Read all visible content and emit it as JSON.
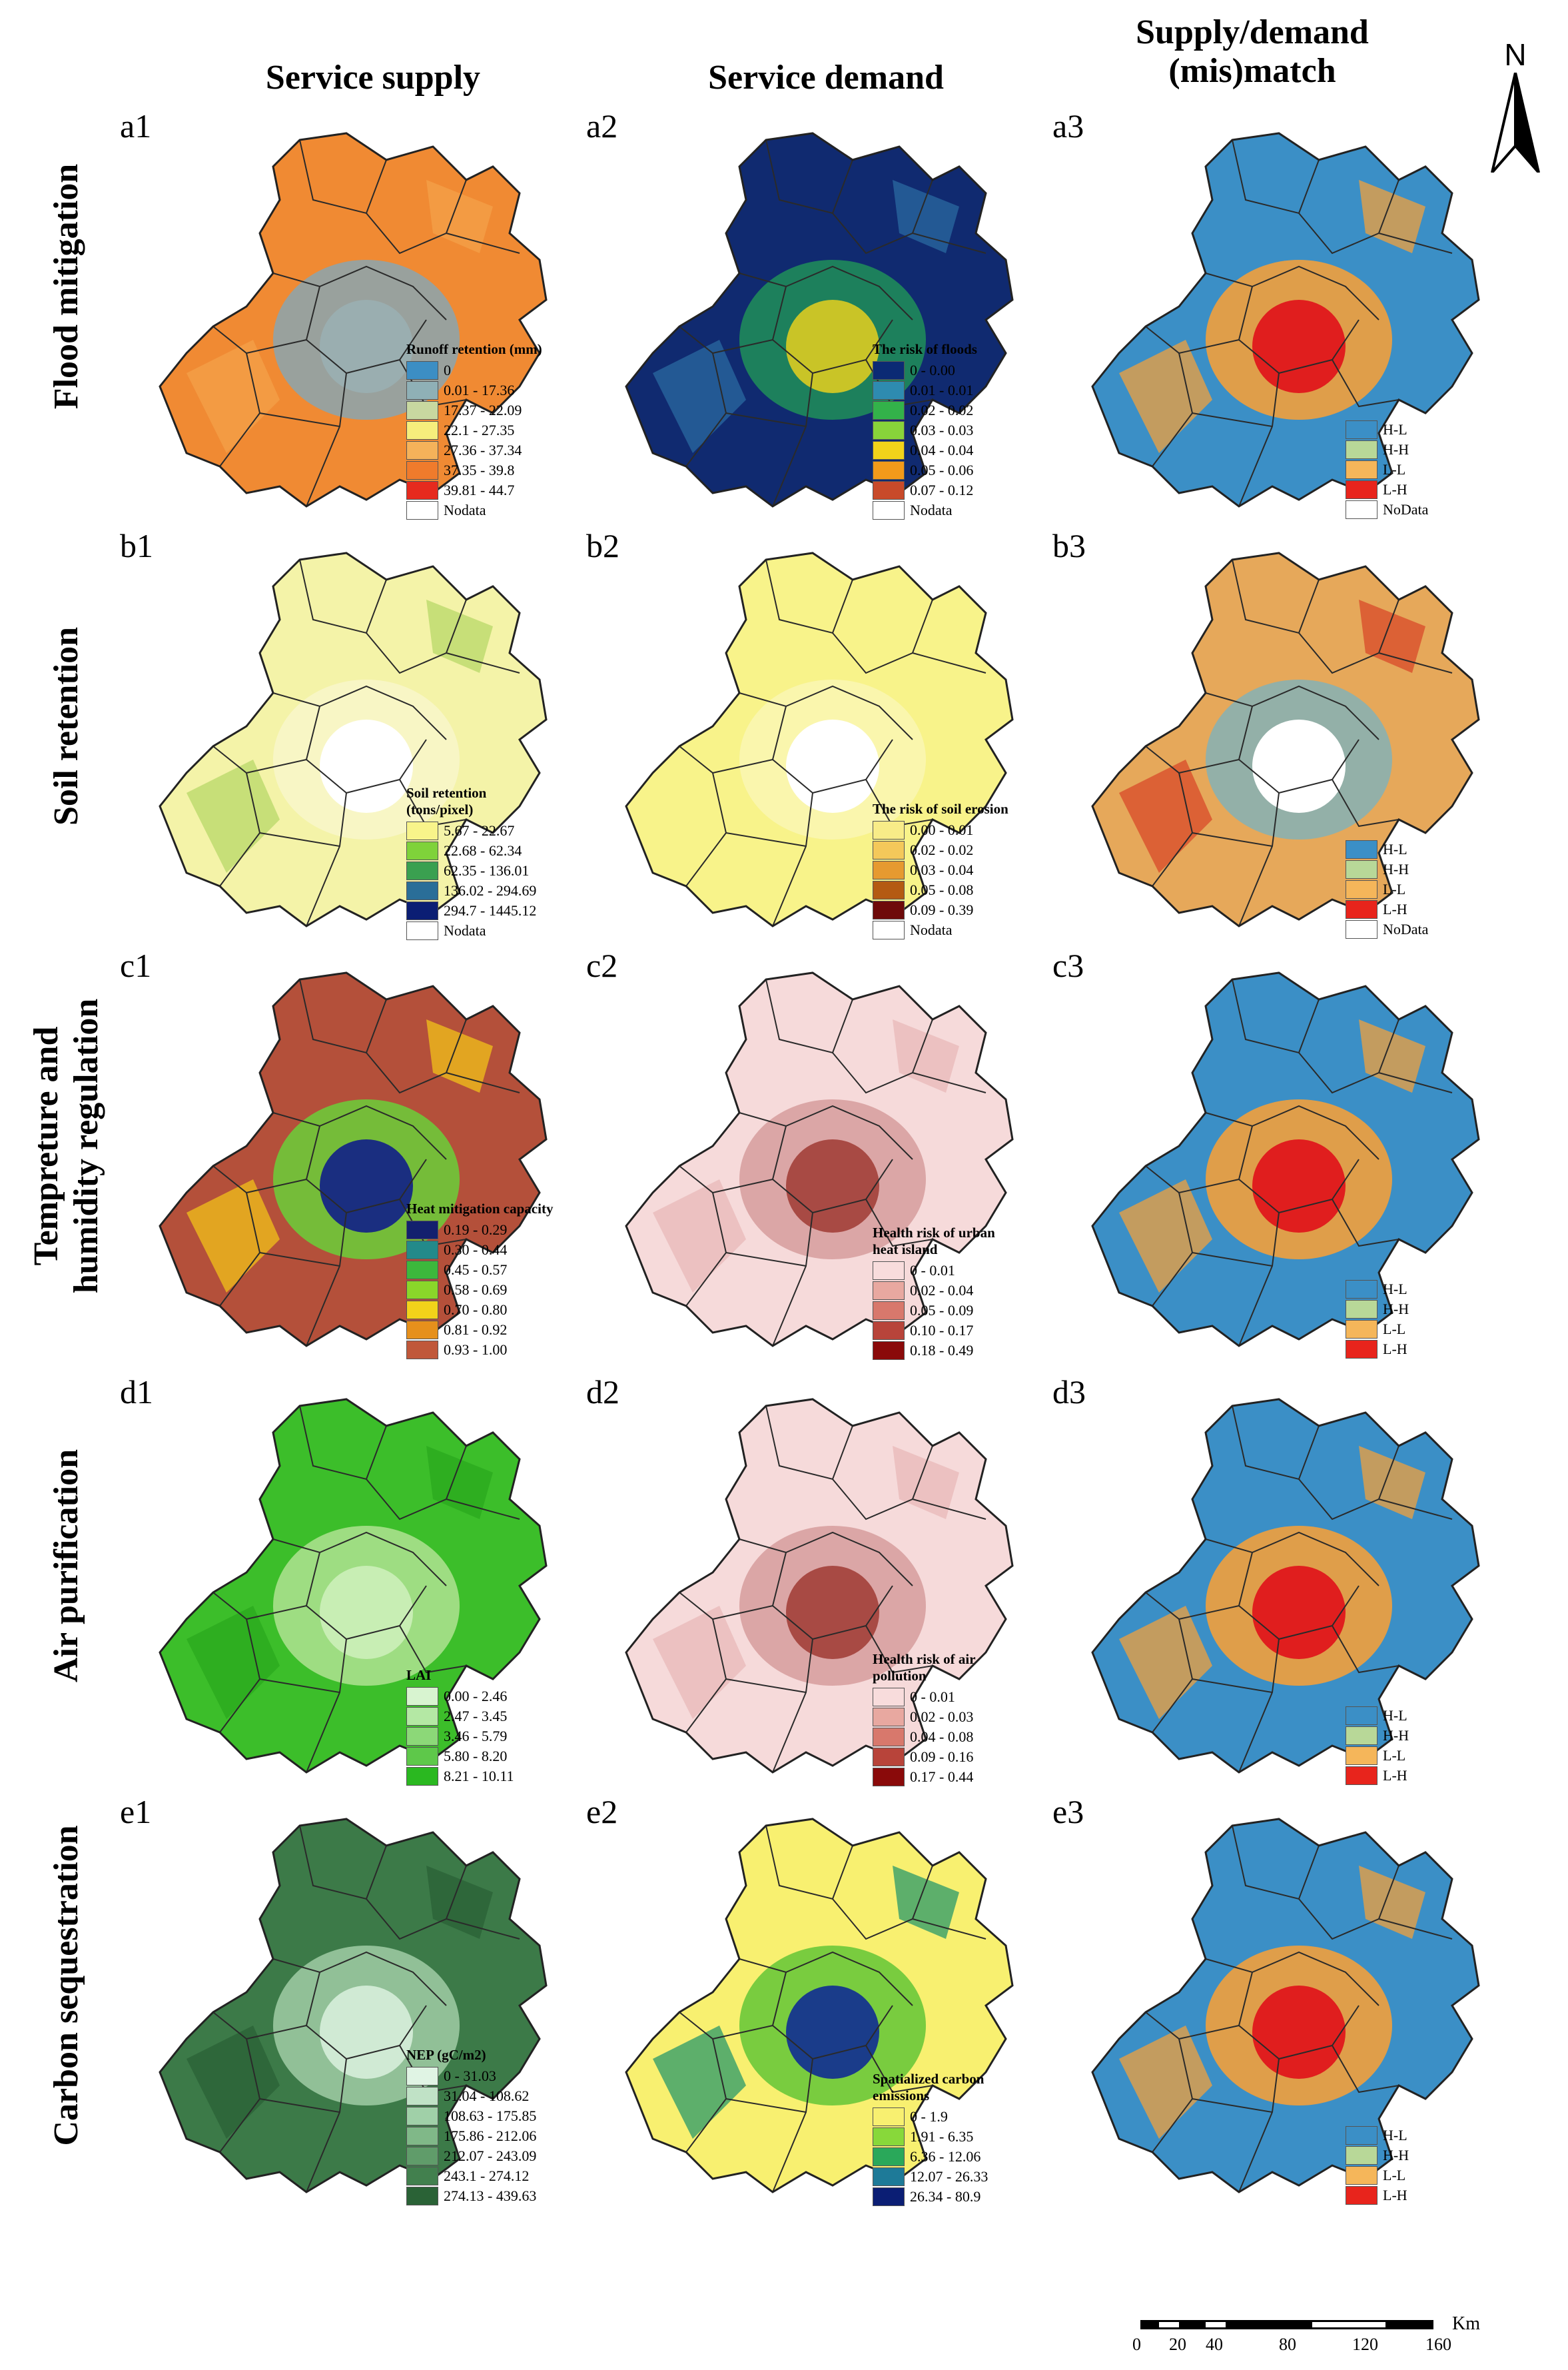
{
  "column_headers": {
    "supply": "Service supply",
    "demand": "Service demand",
    "match_line1": "Supply/demand",
    "match_line2": "(mis)match"
  },
  "north_arrow": {
    "label": "N"
  },
  "scale_bar": {
    "unit": "Km",
    "ticks": [
      "0",
      "20",
      "40",
      "80",
      "120",
      "160"
    ]
  },
  "rows": [
    {
      "title_lines": [
        "Flood mitigation"
      ],
      "panels": [
        {
          "label": "a1",
          "map_colors": {
            "base": "#f08a33",
            "mid": "#8fa3a8",
            "core": "#9aaeb0",
            "extra": "#f4a04a"
          },
          "legend": {
            "title": "Runoff retention (mm)",
            "items": [
              {
                "label": "0",
                "color": "#3c8ec4"
              },
              {
                "label": "0.01 - 17.36",
                "color": "#8fb0b6"
              },
              {
                "label": "17.37 - 22.09",
                "color": "#c8d8a0"
              },
              {
                "label": "22.1 - 27.35",
                "color": "#f6ee7c"
              },
              {
                "label": "27.36 - 37.34",
                "color": "#f5b25a"
              },
              {
                "label": "37.35 - 39.8",
                "color": "#f07b2c"
              },
              {
                "label": "39.81 - 44.7",
                "color": "#e62a1e"
              },
              {
                "label": "Nodata",
                "color": "#ffffff"
              }
            ]
          }
        },
        {
          "label": "a2",
          "map_colors": {
            "base": "#102a70",
            "mid": "#1f8a5a",
            "core": "#c9c427",
            "extra": "#2a6aa0"
          },
          "legend": {
            "title": "The risk of floods",
            "items": [
              {
                "label": "0 - 0.00",
                "color": "#0b2a74"
              },
              {
                "label": "0.01 - 0.01",
                "color": "#2e8bb0"
              },
              {
                "label": "0.02 - 0.02",
                "color": "#33b24a"
              },
              {
                "label": "0.03 - 0.03",
                "color": "#88d33a"
              },
              {
                "label": "0.04 - 0.04",
                "color": "#f2d31a"
              },
              {
                "label": "0.05 - 0.06",
                "color": "#f29a1a"
              },
              {
                "label": "0.07 - 0.12",
                "color": "#c84a2a"
              },
              {
                "label": "Nodata",
                "color": "#ffffff"
              }
            ]
          }
        },
        {
          "label": "a3",
          "map_colors": {
            "base": "#3b8fc6",
            "mid": "#f2a03c",
            "core": "#e01e1e",
            "extra": "#f2a03c"
          },
          "legend": {
            "title": "",
            "items": [
              {
                "label": "H-L",
                "color": "#3b8fc6"
              },
              {
                "label": "H-H",
                "color": "#b8d898"
              },
              {
                "label": "L-L",
                "color": "#f5b65a"
              },
              {
                "label": "L-H",
                "color": "#e8241c"
              },
              {
                "label": "NoData",
                "color": "#ffffff"
              }
            ]
          }
        }
      ]
    },
    {
      "title_lines": [
        "Soil retention"
      ],
      "panels": [
        {
          "label": "b1",
          "map_colors": {
            "base": "#f4f3a8",
            "mid": "#f8f6c8",
            "core": "#ffffff",
            "extra": "#b8d868"
          },
          "legend": {
            "title": "Soil retention (tons/pixel)",
            "items": [
              {
                "label": "5.67 - 22.67",
                "color": "#f8f48a"
              },
              {
                "label": "22.68 - 62.34",
                "color": "#7fd23a"
              },
              {
                "label": "62.35 - 136.01",
                "color": "#3aa050"
              },
              {
                "label": "136.02 - 294.69",
                "color": "#2a6e98"
              },
              {
                "label": "294.7 - 1445.12",
                "color": "#0b1e74"
              },
              {
                "label": "Nodata",
                "color": "#ffffff"
              }
            ]
          }
        },
        {
          "label": "b2",
          "map_colors": {
            "base": "#f8f38a",
            "mid": "#faf6b0",
            "core": "#ffffff",
            "extra": "#f8f38a"
          },
          "legend": {
            "title": "The risk of soil erosion",
            "items": [
              {
                "label": "0.00 - 0.01",
                "color": "#f8ec88"
              },
              {
                "label": "0.02 - 0.02",
                "color": "#f4c85a"
              },
              {
                "label": "0.03 - 0.04",
                "color": "#e69a30"
              },
              {
                "label": "0.05 - 0.08",
                "color": "#b45a12"
              },
              {
                "label": "0.09 - 0.39",
                "color": "#6e0a0a"
              },
              {
                "label": "Nodata",
                "color": "#ffffff"
              }
            ]
          }
        },
        {
          "label": "b3",
          "map_colors": {
            "base": "#e6a85a",
            "mid": "#8ab0b0",
            "core": "#ffffff",
            "extra": "#d84a2a"
          },
          "legend": {
            "title": "",
            "items": [
              {
                "label": "H-L",
                "color": "#3b8fc6"
              },
              {
                "label": "H-H",
                "color": "#b8d898"
              },
              {
                "label": "L-L",
                "color": "#f5b65a"
              },
              {
                "label": "L-H",
                "color": "#e8241c"
              },
              {
                "label": "NoData",
                "color": "#ffffff"
              }
            ]
          }
        }
      ]
    },
    {
      "title_lines": [
        "Tempreture and",
        "humidity regulation"
      ],
      "panels": [
        {
          "label": "c1",
          "map_colors": {
            "base": "#b4503a",
            "mid": "#6ec83a",
            "core": "#1a2e80",
            "extra": "#f2c21a"
          },
          "legend": {
            "title": "Heat mitigation capacity",
            "items": [
              {
                "label": "0.19 - 0.29",
                "color": "#13206e"
              },
              {
                "label": "0.30 - 0.44",
                "color": "#238a8a"
              },
              {
                "label": "0.45 - 0.57",
                "color": "#3cb83c"
              },
              {
                "label": "0.58 - 0.69",
                "color": "#8ad62a"
              },
              {
                "label": "0.70 - 0.80",
                "color": "#f2d21a"
              },
              {
                "label": "0.81 - 0.92",
                "color": "#e6901c"
              },
              {
                "label": "0.93 - 1.00",
                "color": "#c0583a"
              }
            ]
          }
        },
        {
          "label": "c2",
          "map_colors": {
            "base": "#f6dada",
            "mid": "#d8a0a0",
            "core": "#a84a44",
            "extra": "#e8b8b8"
          },
          "legend": {
            "title": "Health risk of urban heat island",
            "items": [
              {
                "label": "0 - 0.01",
                "color": "#f8dcdc"
              },
              {
                "label": "0.02 - 0.04",
                "color": "#e8a8a0"
              },
              {
                "label": "0.05 - 0.09",
                "color": "#d8786c"
              },
              {
                "label": "0.10 - 0.17",
                "color": "#b8443a"
              },
              {
                "label": "0.18 - 0.49",
                "color": "#8a0a0a"
              }
            ]
          }
        },
        {
          "label": "c3",
          "map_colors": {
            "base": "#3b8fc6",
            "mid": "#f2a03c",
            "core": "#e01e1e",
            "extra": "#f2a03c"
          },
          "legend": {
            "title": "",
            "items": [
              {
                "label": "H-L",
                "color": "#3b8fc6"
              },
              {
                "label": "H-H",
                "color": "#b8d898"
              },
              {
                "label": "L-L",
                "color": "#f5b65a"
              },
              {
                "label": "L-H",
                "color": "#e8241c"
              }
            ]
          }
        }
      ]
    },
    {
      "title_lines": [
        "Air purification"
      ],
      "panels": [
        {
          "label": "d1",
          "map_colors": {
            "base": "#3cbe2a",
            "mid": "#a8e08c",
            "core": "#c8eeb4",
            "extra": "#2aa81e"
          },
          "legend": {
            "title": "LAI",
            "items": [
              {
                "label": "0.00 - 2.46",
                "color": "#d8f4d0"
              },
              {
                "label": "2.47 - 3.45",
                "color": "#b4e8a4"
              },
              {
                "label": "3.46 - 5.79",
                "color": "#8cd878"
              },
              {
                "label": "5.80 - 8.20",
                "color": "#5ec84a"
              },
              {
                "label": "8.21 - 10.11",
                "color": "#2ab820"
              }
            ]
          }
        },
        {
          "label": "d2",
          "map_colors": {
            "base": "#f6dada",
            "mid": "#d8a0a0",
            "core": "#a84a44",
            "extra": "#e8b8b8"
          },
          "legend": {
            "title": "Health risk of air pollution",
            "items": [
              {
                "label": "0 - 0.01",
                "color": "#f8dcdc"
              },
              {
                "label": "0.02 - 0.03",
                "color": "#e8a8a0"
              },
              {
                "label": "0.04 - 0.08",
                "color": "#d8786c"
              },
              {
                "label": "0.09 - 0.16",
                "color": "#b8443a"
              },
              {
                "label": "0.17 - 0.44",
                "color": "#8a0a0a"
              }
            ]
          }
        },
        {
          "label": "d3",
          "map_colors": {
            "base": "#3b8fc6",
            "mid": "#f2a03c",
            "core": "#e01e1e",
            "extra": "#f2a03c"
          },
          "legend": {
            "title": "",
            "items": [
              {
                "label": "H-L",
                "color": "#3b8fc6"
              },
              {
                "label": "H-H",
                "color": "#b8d898"
              },
              {
                "label": "L-L",
                "color": "#f5b65a"
              },
              {
                "label": "L-H",
                "color": "#e8241c"
              }
            ]
          }
        }
      ]
    },
    {
      "title_lines": [
        "Carbon sequestration"
      ],
      "panels": [
        {
          "label": "e1",
          "map_colors": {
            "base": "#3c7a48",
            "mid": "#9ac8a0",
            "core": "#d0ead4",
            "extra": "#2a6236"
          },
          "legend": {
            "title": "NEP (gC/m2)",
            "items": [
              {
                "label": "0 - 31.03",
                "color": "#e0f4e4"
              },
              {
                "label": "31.04 - 108.62",
                "color": "#c0e2c6"
              },
              {
                "label": "108.63 - 175.85",
                "color": "#a0d0a8"
              },
              {
                "label": "175.86 - 212.06",
                "color": "#80b888"
              },
              {
                "label": "212.07 - 243.09",
                "color": "#609c6a"
              },
              {
                "label": "243.1 - 274.12",
                "color": "#42804e"
              },
              {
                "label": "274.13 - 439.63",
                "color": "#2a6236"
              }
            ]
          }
        },
        {
          "label": "e2",
          "map_colors": {
            "base": "#f8f070",
            "mid": "#6ac83a",
            "core": "#1a3c8a",
            "extra": "#2a9a6a"
          },
          "legend": {
            "title": "Spatialized carbon emissions",
            "items": [
              {
                "label": "0 - 1.9",
                "color": "#f8f070"
              },
              {
                "label": "1.91 - 6.35",
                "color": "#88d83a"
              },
              {
                "label": "6.36 - 12.06",
                "color": "#2aa85a"
              },
              {
                "label": "12.07 - 26.33",
                "color": "#1e7a98"
              },
              {
                "label": "26.34 - 80.9",
                "color": "#0b1e74"
              }
            ]
          }
        },
        {
          "label": "e3",
          "map_colors": {
            "base": "#3b8fc6",
            "mid": "#f2a03c",
            "core": "#e01e1e",
            "extra": "#f2a03c"
          },
          "legend": {
            "title": "",
            "items": [
              {
                "label": "H-L",
                "color": "#3b8fc6"
              },
              {
                "label": "H-H",
                "color": "#b8d898"
              },
              {
                "label": "L-L",
                "color": "#f5b65a"
              },
              {
                "label": "L-H",
                "color": "#e8241c"
              }
            ]
          }
        }
      ]
    }
  ]
}
